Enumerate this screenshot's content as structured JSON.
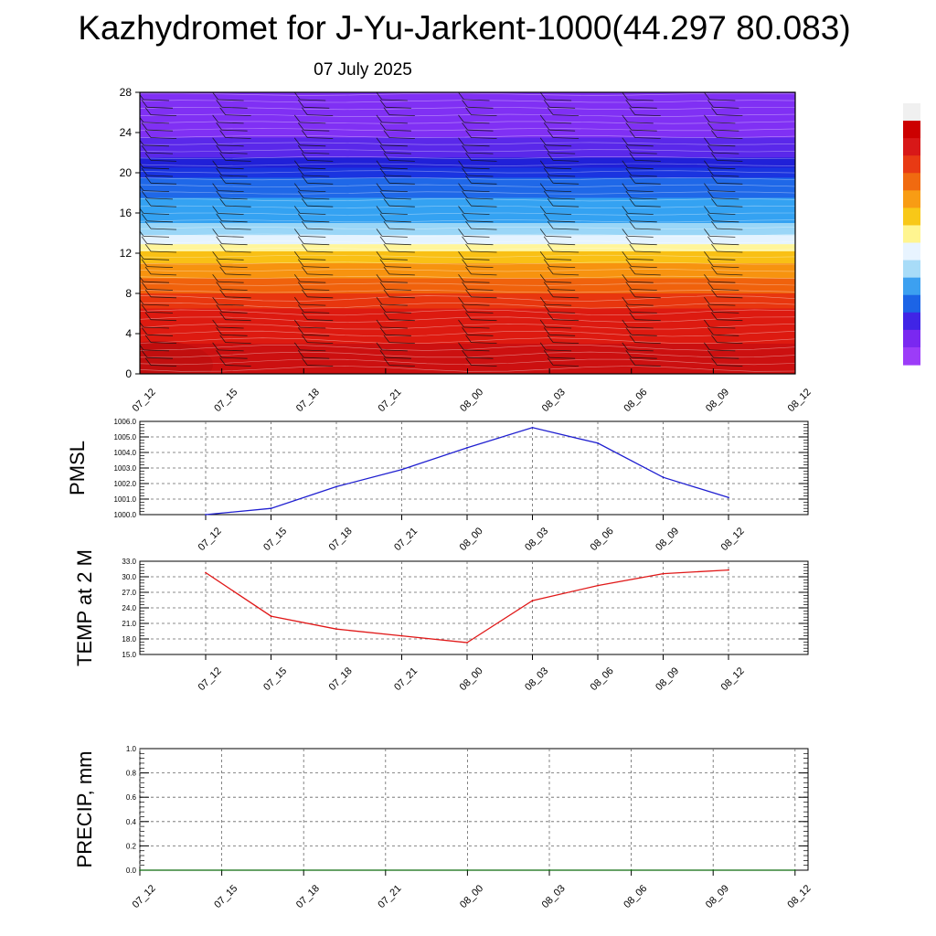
{
  "header": {
    "title": "Kazhydromet for J-Yu-Jarkent-1000(44.297 80.083)",
    "date": "07 July 2025"
  },
  "colorbar": {
    "colors": [
      "#f0f0f0",
      "#cc0000",
      "#d81818",
      "#e83a14",
      "#f06a10",
      "#f89c14",
      "#f8c818",
      "#fff590",
      "#e8f4ff",
      "#a8dcf8",
      "#3ca0f0",
      "#1c64e6",
      "#4024e6",
      "#7a28f0",
      "#9c3cf8"
    ]
  },
  "chart_data": [
    {
      "id": "cross-section",
      "type": "heatmap",
      "title": "",
      "xlabel": "",
      "ylabel": "",
      "categories": [
        "07_12",
        "07_15",
        "07_18",
        "07_21",
        "08_00",
        "08_03",
        "08_06",
        "08_09",
        "08_12"
      ],
      "x_tick_labels": [
        "07_12",
        "07_15",
        "07_18",
        "07_21",
        "08_00",
        "08_03",
        "08_06",
        "08_09",
        "08_12"
      ],
      "y_ticks": [
        "0",
        "4",
        "8",
        "12",
        "16",
        "20",
        "24",
        "28"
      ],
      "ylim": [
        0,
        28
      ],
      "bands": [
        {
          "from": 0,
          "to": 3,
          "color": "#cc1010"
        },
        {
          "from": 3,
          "to": 6.5,
          "color": "#dd1a10"
        },
        {
          "from": 6.5,
          "to": 8,
          "color": "#e8360e"
        },
        {
          "from": 8,
          "to": 9.5,
          "color": "#f0620c"
        },
        {
          "from": 9.5,
          "to": 11,
          "color": "#f7930f"
        },
        {
          "from": 11,
          "to": 12.2,
          "color": "#f9c015"
        },
        {
          "from": 12.2,
          "to": 12.9,
          "color": "#fff59a"
        },
        {
          "from": 12.9,
          "to": 13.8,
          "color": "#e4f3ff"
        },
        {
          "from": 13.8,
          "to": 15,
          "color": "#9ad6f7"
        },
        {
          "from": 15,
          "to": 17.5,
          "color": "#34a2f2"
        },
        {
          "from": 17.5,
          "to": 19.5,
          "color": "#1f68e8"
        },
        {
          "from": 19.5,
          "to": 20.5,
          "color": "#1a34e0"
        },
        {
          "from": 20.5,
          "to": 21.5,
          "color": "#2020d8"
        },
        {
          "from": 21.5,
          "to": 23.5,
          "color": "#5a28ea"
        },
        {
          "from": 23.5,
          "to": 28,
          "color": "#8030f4"
        }
      ],
      "wind_columns": [
        0,
        1,
        2,
        3,
        4,
        5,
        6,
        7
      ]
    },
    {
      "id": "pmsl",
      "type": "line",
      "title": "",
      "ylabel": "PMSL",
      "categories": [
        "07_12",
        "07_15",
        "07_18",
        "07_21",
        "08_00",
        "08_03",
        "08_06",
        "08_09",
        "08_12"
      ],
      "series": [
        {
          "color": "#1f1fd0",
          "values": [
            1000.0,
            1000.4,
            1001.8,
            1002.9,
            1004.3,
            1005.6,
            1004.6,
            1002.4,
            1001.1
          ]
        }
      ],
      "ylim": [
        1000.0,
        1006.0
      ],
      "y_ticks": [
        "1000.0",
        "1001.0",
        "1002.0",
        "1003.0",
        "1004.0",
        "1005.0",
        "1006.0"
      ],
      "grid": true
    },
    {
      "id": "temp2m",
      "type": "line",
      "title": "",
      "ylabel": "TEMP at 2 M",
      "categories": [
        "07_12",
        "07_15",
        "07_18",
        "07_21",
        "08_00",
        "08_03",
        "08_06",
        "08_09",
        "08_12"
      ],
      "series": [
        {
          "color": "#e01818",
          "values": [
            30.8,
            22.4,
            19.9,
            18.6,
            17.3,
            25.4,
            28.3,
            30.6,
            31.3
          ]
        }
      ],
      "ylim": [
        15.0,
        33.0
      ],
      "y_ticks": [
        "15.0",
        "18.0",
        "21.0",
        "24.0",
        "27.0",
        "30.0",
        "33.0"
      ],
      "grid": true
    },
    {
      "id": "precip",
      "type": "line",
      "title": "",
      "ylabel": "PRECIP, mm",
      "categories": [
        "07_12",
        "07_15",
        "07_18",
        "07_21",
        "08_00",
        "08_03",
        "08_06",
        "08_09",
        "08_12"
      ],
      "series": [
        {
          "color": "#0a6a0a",
          "values": [
            0,
            0,
            0,
            0,
            0,
            0,
            0,
            0,
            0
          ]
        }
      ],
      "ylim": [
        0.0,
        1.0
      ],
      "y_ticks": [
        "0.0",
        "0.2",
        "0.4",
        "0.6",
        "0.8",
        "1.0"
      ],
      "grid": true
    }
  ]
}
